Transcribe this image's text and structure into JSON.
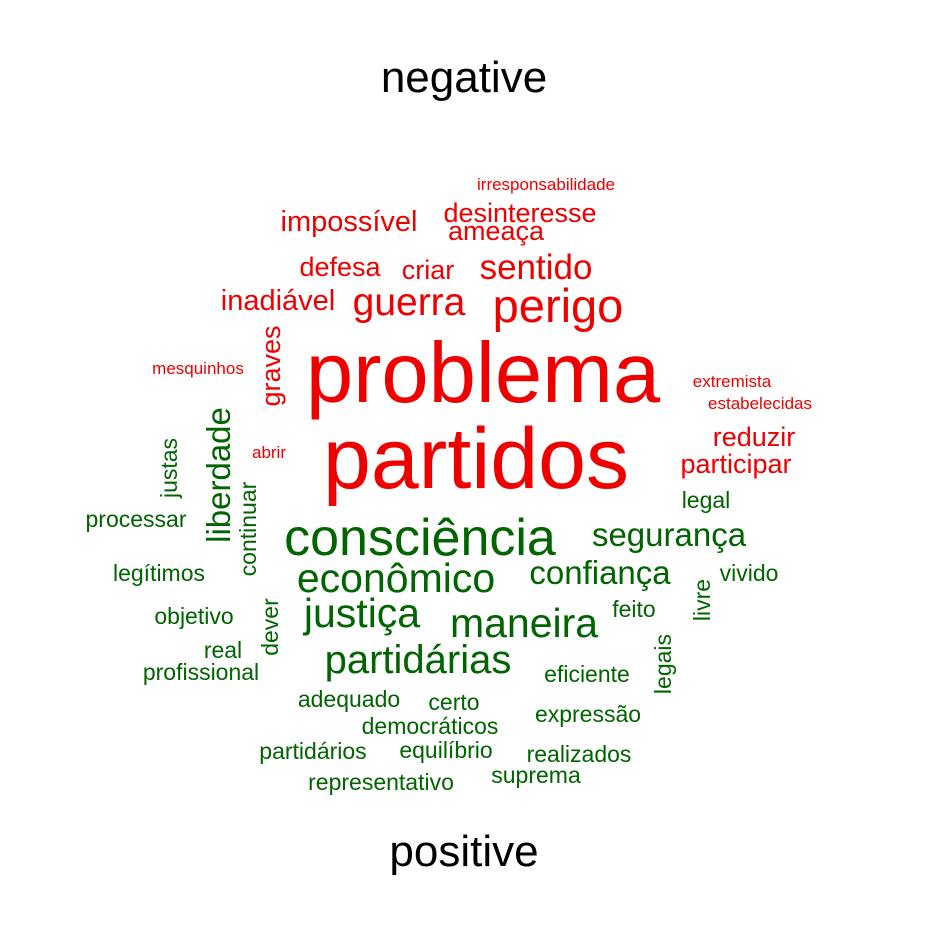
{
  "colors": {
    "negative": "#ee0000",
    "positive": "#006400",
    "heading": "#000000"
  },
  "headings": {
    "negative": "negative",
    "positive": "positive"
  },
  "negative_words": [
    "irresponsabilidade",
    "desinteresse",
    "impossível",
    "ameaça",
    "sentido",
    "defesa",
    "criar",
    "inadiável",
    "guerra",
    "perigo",
    "graves",
    "mesquinhos",
    "problema",
    "extremista",
    "estabelecidas",
    "abrir",
    "partidos",
    "reduzir",
    "participar"
  ],
  "positive_words": [
    "justas",
    "liberdade",
    "continuar",
    "processar",
    "legal",
    "consciência",
    "segurança",
    "legítimos",
    "econômico",
    "confiança",
    "vivido",
    "livre",
    "objetivo",
    "dever",
    "justiça",
    "maneira",
    "feito",
    "real",
    "partidárias",
    "profissional",
    "legais",
    "eficiente",
    "adequado",
    "certo",
    "expressão",
    "democráticos",
    "partidários",
    "equilíbrio",
    "realizados",
    "suprema",
    "representativo"
  ]
}
